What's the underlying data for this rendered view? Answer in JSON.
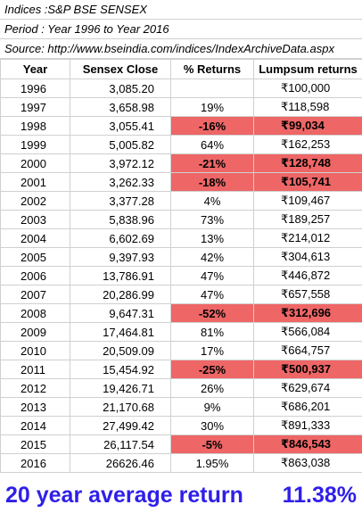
{
  "meta": {
    "index_line": "Indices :S&P BSE SENSEX",
    "period_line": "Period : Year 1996 to Year 2016",
    "source_line": "Source: http://www.bseindia.com/indices/IndexArchiveData.aspx"
  },
  "table": {
    "headers": [
      "Year",
      "Sensex Close",
      "% Returns",
      "Lumpsum returns"
    ],
    "rows": [
      {
        "year": "1996",
        "close": "3,085.20",
        "ret": "",
        "lump": "₹100,000",
        "negative": false
      },
      {
        "year": "1997",
        "close": "3,658.98",
        "ret": "19%",
        "lump": "₹118,598",
        "negative": false
      },
      {
        "year": "1998",
        "close": "3,055.41",
        "ret": "-16%",
        "lump": "₹99,034",
        "negative": true
      },
      {
        "year": "1999",
        "close": "5,005.82",
        "ret": "64%",
        "lump": "₹162,253",
        "negative": false
      },
      {
        "year": "2000",
        "close": "3,972.12",
        "ret": "-21%",
        "lump": "₹128,748",
        "negative": true
      },
      {
        "year": "2001",
        "close": "3,262.33",
        "ret": "-18%",
        "lump": "₹105,741",
        "negative": true
      },
      {
        "year": "2002",
        "close": "3,377.28",
        "ret": "4%",
        "lump": "₹109,467",
        "negative": false
      },
      {
        "year": "2003",
        "close": "5,838.96",
        "ret": "73%",
        "lump": "₹189,257",
        "negative": false
      },
      {
        "year": "2004",
        "close": "6,602.69",
        "ret": "13%",
        "lump": "₹214,012",
        "negative": false
      },
      {
        "year": "2005",
        "close": "9,397.93",
        "ret": "42%",
        "lump": "₹304,613",
        "negative": false
      },
      {
        "year": "2006",
        "close": "13,786.91",
        "ret": "47%",
        "lump": "₹446,872",
        "negative": false
      },
      {
        "year": "2007",
        "close": "20,286.99",
        "ret": "47%",
        "lump": "₹657,558",
        "negative": false
      },
      {
        "year": "2008",
        "close": "9,647.31",
        "ret": "-52%",
        "lump": "₹312,696",
        "negative": true
      },
      {
        "year": "2009",
        "close": "17,464.81",
        "ret": "81%",
        "lump": "₹566,084",
        "negative": false
      },
      {
        "year": "2010",
        "close": "20,509.09",
        "ret": "17%",
        "lump": "₹664,757",
        "negative": false
      },
      {
        "year": "2011",
        "close": "15,454.92",
        "ret": "-25%",
        "lump": "₹500,937",
        "negative": true
      },
      {
        "year": "2012",
        "close": "19,426.71",
        "ret": "26%",
        "lump": "₹629,674",
        "negative": false
      },
      {
        "year": "2013",
        "close": "21,170.68",
        "ret": "9%",
        "lump": "₹686,201",
        "negative": false
      },
      {
        "year": "2014",
        "close": "27,499.42",
        "ret": "30%",
        "lump": "₹891,333",
        "negative": false
      },
      {
        "year": "2015",
        "close": "26,117.54",
        "ret": "-5%",
        "lump": "₹846,543",
        "negative": true
      },
      {
        "year": "2016",
        "close": "26626.46",
        "ret": "1.95%",
        "lump": "₹863,038",
        "negative": false
      }
    ]
  },
  "footer": {
    "label": "20 year average return",
    "value": "11.38%"
  },
  "colors": {
    "negative_fill": "#ee6666",
    "footer_text": "#2f1fe8"
  }
}
